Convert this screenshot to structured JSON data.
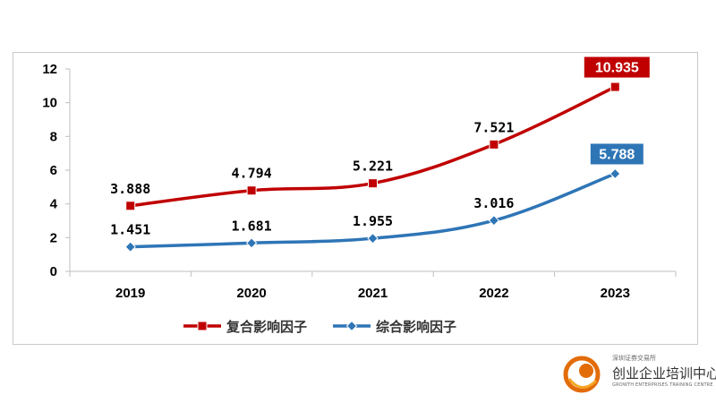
{
  "chart_data": {
    "type": "line",
    "categories": [
      "2019",
      "2020",
      "2021",
      "2022",
      "2023"
    ],
    "series": [
      {
        "name": "复合影响因子",
        "values": [
          3.888,
          4.794,
          5.221,
          7.521,
          10.935
        ],
        "labels": [
          "3.888",
          "4.794",
          "5.221",
          "7.521",
          "10.935"
        ],
        "color": "#c00000",
        "marker": "square",
        "boxed_label_index": 4
      },
      {
        "name": "综合影响因子",
        "values": [
          1.451,
          1.681,
          1.955,
          3.016,
          5.788
        ],
        "labels": [
          "1.451",
          "1.681",
          "1.955",
          "3.016",
          "5.788"
        ],
        "color": "#2e75b6",
        "marker": "diamond",
        "boxed_label_index": 4
      }
    ],
    "y_ticks": [
      "0",
      "2",
      "4",
      "6",
      "8",
      "10",
      "12"
    ],
    "ylim": [
      0,
      12
    ],
    "grid": false,
    "legend_position": "bottom"
  },
  "logo": {
    "top_text": "深圳证券交易所",
    "main_text": "创业企业培训中心",
    "english_text": "GROWTH ENTERPRISES TRAINING CENTRE",
    "color": "#e36c0a"
  }
}
